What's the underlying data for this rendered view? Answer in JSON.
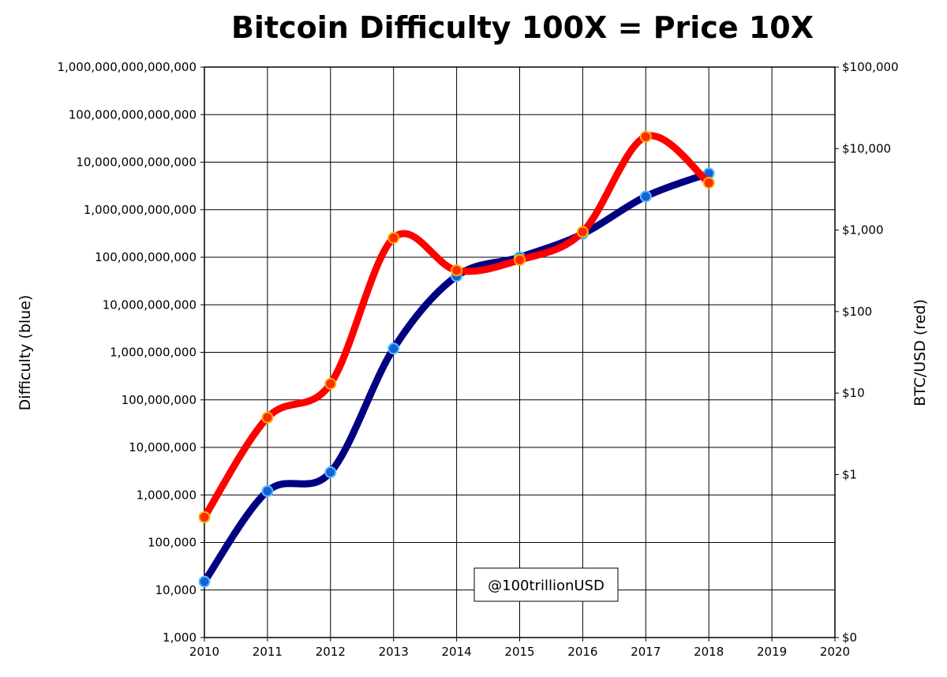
{
  "chart_data": {
    "type": "line",
    "title": "Bitcoin Difficulty 100X = Price 10X",
    "ylabel_left": "Difficulty (blue)",
    "ylabel_right": "BTC/USD (red)",
    "annotation": "@100trillionUSD",
    "x_ticks": [
      "2010",
      "2011",
      "2012",
      "2013",
      "2014",
      "2015",
      "2016",
      "2017",
      "2018",
      "2019",
      "2020"
    ],
    "xlim": [
      2010,
      2020
    ],
    "y_left": {
      "scale": "log",
      "lim": [
        1000,
        1000000000000000
      ],
      "ticks": [
        {
          "value": 1000,
          "label": "1,000"
        },
        {
          "value": 10000,
          "label": "10,000"
        },
        {
          "value": 100000,
          "label": "100,000"
        },
        {
          "value": 1000000,
          "label": "1,000,000"
        },
        {
          "value": 10000000,
          "label": "10,000,000"
        },
        {
          "value": 100000000,
          "label": "100,000,000"
        },
        {
          "value": 1000000000,
          "label": "1,000,000,000"
        },
        {
          "value": 10000000000,
          "label": "10,000,000,000"
        },
        {
          "value": 100000000000,
          "label": "100,000,000,000"
        },
        {
          "value": 1000000000000,
          "label": "1,000,000,000,000"
        },
        {
          "value": 10000000000000,
          "label": "10,000,000,000,000"
        },
        {
          "value": 100000000000000,
          "label": "100,000,000,000,000"
        },
        {
          "value": 1000000000000000,
          "label": "1,000,000,000,000,000"
        }
      ]
    },
    "y_right": {
      "scale": "log",
      "lim": [
        0.01,
        100000
      ],
      "ticks": [
        {
          "value": 0.01,
          "label": "$0"
        },
        {
          "value": 1,
          "label": "$1"
        },
        {
          "value": 10,
          "label": "$10"
        },
        {
          "value": 100,
          "label": "$100"
        },
        {
          "value": 1000,
          "label": "$1,000"
        },
        {
          "value": 10000,
          "label": "$10,000"
        },
        {
          "value": 100000,
          "label": "$100,000"
        }
      ]
    },
    "grid": true,
    "series": [
      {
        "axis": "left",
        "color": "#000080",
        "marker_color": "#1a5fd6",
        "marker_edge": "#4fc3ff",
        "x": [
          2010,
          2011,
          2012,
          2013,
          2014,
          2015,
          2016,
          2017,
          2018
        ],
        "values": [
          15000,
          1200000,
          3000000,
          1200000000,
          40000000000,
          100000000000,
          310000000000,
          1900000000000,
          5800000000000
        ]
      },
      {
        "axis": "right",
        "color": "#ff0000",
        "marker_color": "#ff2a00",
        "marker_edge": "#ffb000",
        "x": [
          2010,
          2011,
          2012,
          2013,
          2014,
          2015,
          2016,
          2017,
          2018
        ],
        "values": [
          0.3,
          5,
          13,
          800,
          320,
          430,
          950,
          14000,
          3800
        ]
      }
    ]
  }
}
